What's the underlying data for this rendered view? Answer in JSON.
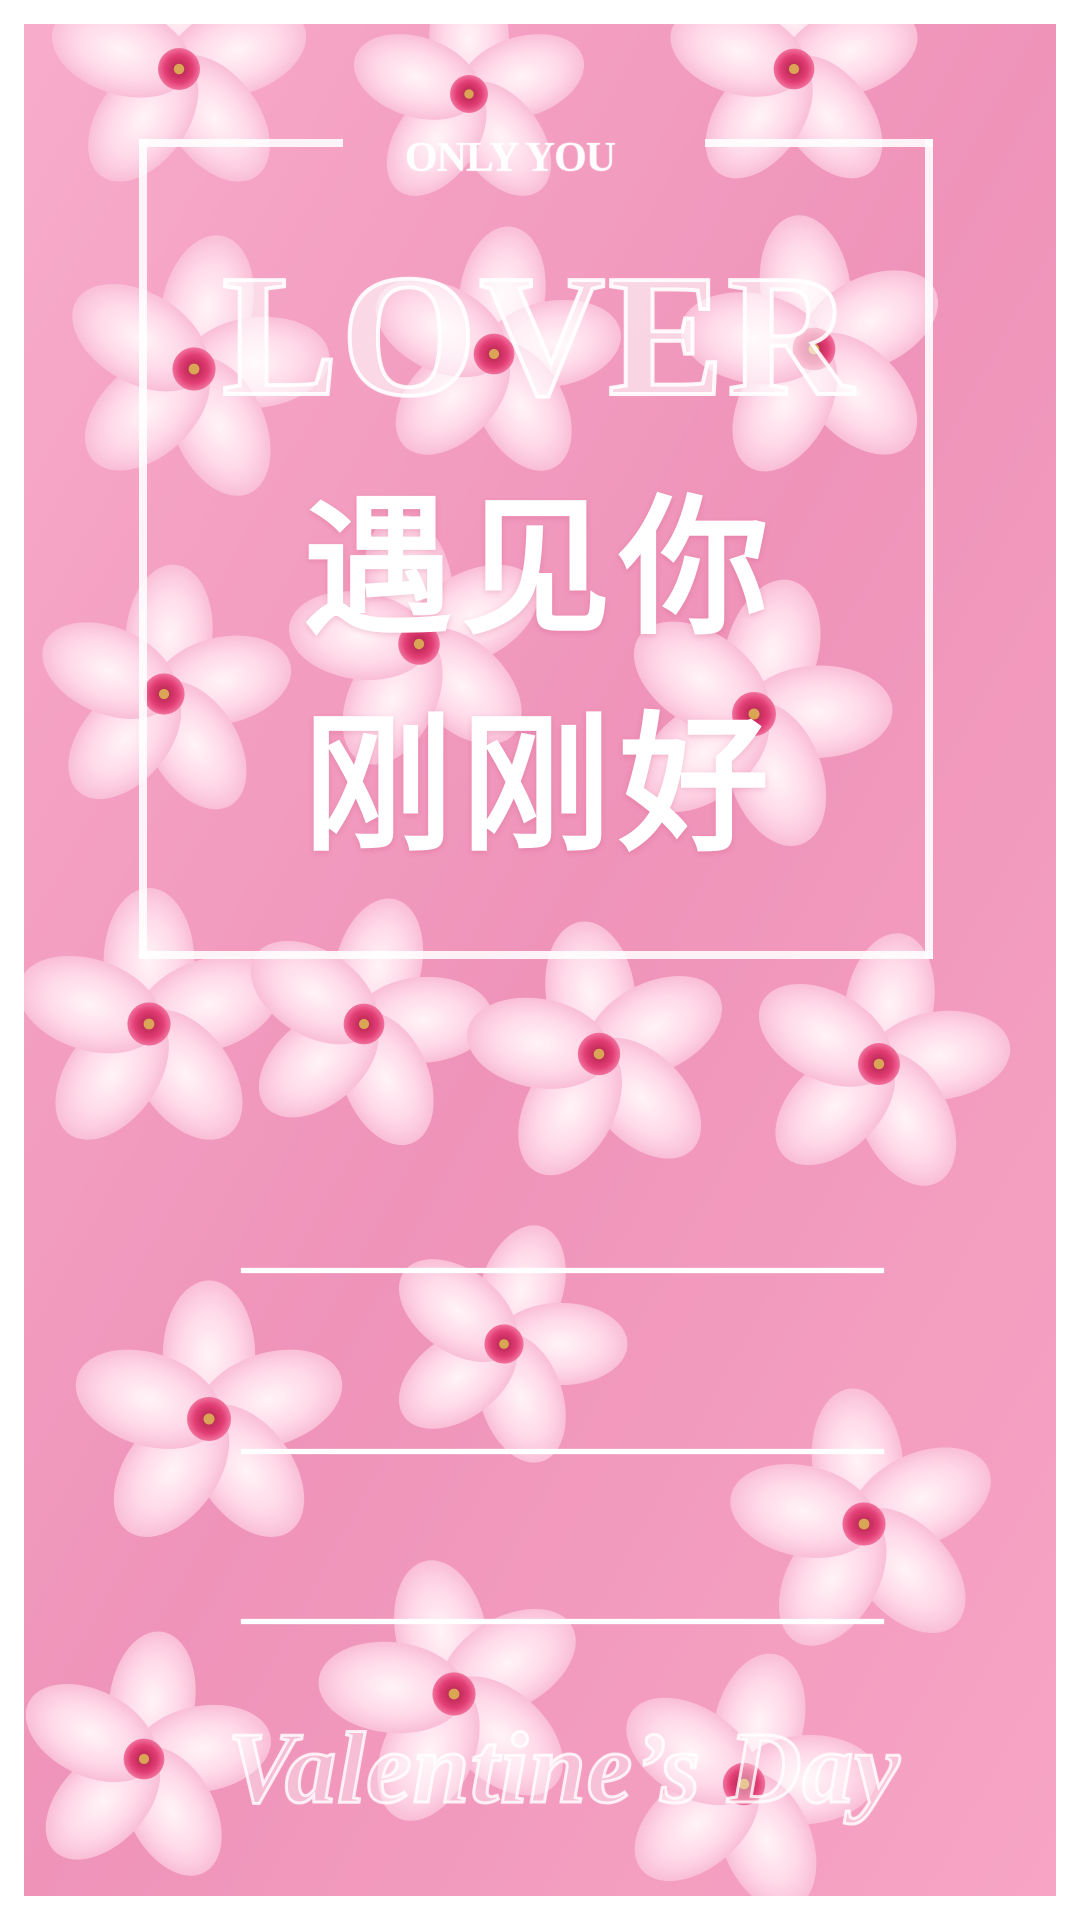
{
  "poster": {
    "top_kicker": "ONLY YOU",
    "headline": "LOVER",
    "chinese_line_1": "遇见你",
    "chinese_line_2": "刚刚好",
    "footer": "Valentine’s Day"
  },
  "theme": {
    "background_pink": "#f08fb4",
    "flower_pink": "#f6a7c6",
    "flower_light": "#ffe6f0",
    "flower_center": "#e1326d",
    "stamen": "#d8a04a",
    "text_white": "#ffffff"
  },
  "decor": {
    "background_image": "pink-phlox-flowers"
  }
}
